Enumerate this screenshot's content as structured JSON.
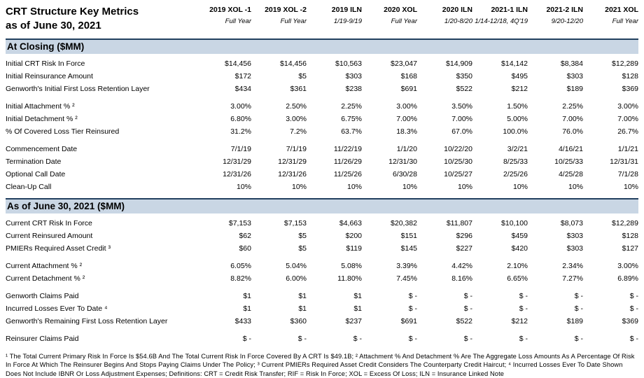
{
  "header": {
    "title_line1": "CRT Structure Key Metrics",
    "title_line2": "as of June 30, 2021",
    "columns": [
      {
        "name": "2019 XOL -1",
        "period": "Full Year"
      },
      {
        "name": "2019 XOL -2",
        "period": "Full Year"
      },
      {
        "name": "2019 ILN",
        "period": "1/19-9/19"
      },
      {
        "name": "2020 XOL",
        "period": "Full Year"
      },
      {
        "name": "2020 ILN",
        "period": "1/20-8/20"
      },
      {
        "name": "2021-1 ILN",
        "period": "1/14-12/18, 4Q'19"
      },
      {
        "name": "2021-2 ILN",
        "period": "9/20-12/20"
      },
      {
        "name": "2021 XOL",
        "period": "Full Year"
      }
    ]
  },
  "colors": {
    "section_bar_bg": "#c9d6e4",
    "section_bar_border": "#22405f"
  },
  "sections": [
    {
      "title": "At Closing ($MM)",
      "groups": [
        {
          "rows": [
            {
              "label": "Initial CRT Risk In Force",
              "values": [
                "$14,456",
                "$14,456",
                "$10,563",
                "$23,047",
                "$14,909",
                "$14,142",
                "$8,384",
                "$12,289"
              ]
            },
            {
              "label": "Initial Reinsurance Amount",
              "values": [
                "$172",
                "$5",
                "$303",
                "$168",
                "$350",
                "$495",
                "$303",
                "$128"
              ]
            },
            {
              "label": "Genworth's Initial First Loss Retention Layer",
              "values": [
                "$434",
                "$361",
                "$238",
                "$691",
                "$522",
                "$212",
                "$189",
                "$369"
              ]
            }
          ]
        },
        {
          "rows": [
            {
              "label": "Initial Attachment % ²",
              "values": [
                "3.00%",
                "2.50%",
                "2.25%",
                "3.00%",
                "3.50%",
                "1.50%",
                "2.25%",
                "3.00%"
              ]
            },
            {
              "label": "Initial Detachment % ²",
              "values": [
                "6.80%",
                "3.00%",
                "6.75%",
                "7.00%",
                "7.00%",
                "5.00%",
                "7.00%",
                "7.00%"
              ]
            },
            {
              "label": "% Of  Covered Loss  Tier Reinsured",
              "values": [
                "31.2%",
                "7.2%",
                "63.7%",
                "18.3%",
                "67.0%",
                "100.0%",
                "76.0%",
                "26.7%"
              ]
            }
          ]
        },
        {
          "rows": [
            {
              "label": "Commencement Date",
              "values": [
                "7/1/19",
                "7/1/19",
                "11/22/19",
                "1/1/20",
                "10/22/20",
                "3/2/21",
                "4/16/21",
                "1/1/21"
              ]
            },
            {
              "label": "Termination Date",
              "values": [
                "12/31/29",
                "12/31/29",
                "11/26/29",
                "12/31/30",
                "10/25/30",
                "8/25/33",
                "10/25/33",
                "12/31/31"
              ]
            },
            {
              "label": "Optional Call Date",
              "values": [
                "12/31/26",
                "12/31/26",
                "11/25/26",
                "6/30/28",
                "10/25/27",
                "2/25/26",
                "4/25/28",
                "7/1/28"
              ]
            },
            {
              "label": "Clean-Up Call",
              "values": [
                "10%",
                "10%",
                "10%",
                "10%",
                "10%",
                "10%",
                "10%",
                "10%"
              ]
            }
          ]
        }
      ]
    },
    {
      "title": "As of June 30, 2021 ($MM)",
      "groups": [
        {
          "rows": [
            {
              "label": "Current CRT Risk In Force",
              "values": [
                "$7,153",
                "$7,153",
                "$4,663",
                "$20,382",
                "$11,807",
                "$10,100",
                "$8,073",
                "$12,289"
              ]
            },
            {
              "label": "Current Reinsured Amount",
              "values": [
                "$62",
                "$5",
                "$200",
                "$151",
                "$296",
                "$459",
                "$303",
                "$128"
              ]
            },
            {
              "label": "PMIERs Required Asset Credit ³",
              "values": [
                "$60",
                "$5",
                "$119",
                "$145",
                "$227",
                "$420",
                "$303",
                "$127"
              ]
            }
          ]
        },
        {
          "rows": [
            {
              "label": "Current Attachment % ²",
              "values": [
                "6.05%",
                "5.04%",
                "5.08%",
                "3.39%",
                "4.42%",
                "2.10%",
                "2.34%",
                "3.00%"
              ]
            },
            {
              "label": "Current Detachment % ²",
              "values": [
                "8.82%",
                "6.00%",
                "11.80%",
                "7.45%",
                "8.16%",
                "6.65%",
                "7.27%",
                "6.89%"
              ]
            }
          ]
        },
        {
          "rows": [
            {
              "label": "Genworth Claims Paid",
              "values": [
                "$1",
                "$1",
                "$1",
                "$ -",
                "$ -",
                "$ -",
                "$ -",
                "$ -"
              ]
            },
            {
              "label": "Incurred Losses  Ever To Date ⁴",
              "values": [
                "$1",
                "$1",
                "$1",
                "$ -",
                "$ -",
                "$ -",
                "$ -",
                "$ -"
              ]
            },
            {
              "label": "Genworth's Remaining First Loss Retention Layer",
              "values": [
                "$433",
                "$360",
                "$237",
                "$691",
                "$522",
                "$212",
                "$189",
                "$369"
              ]
            }
          ]
        },
        {
          "rows": [
            {
              "label": "Reinsurer Claims  Paid",
              "values": [
                "$ -",
                "$ -",
                "$ -",
                "$ -",
                "$ -",
                "$ -",
                "$ -",
                "$ -"
              ]
            }
          ]
        }
      ]
    }
  ],
  "footnote": "¹ The Total Current Primary Risk In Force Is  $54.6B And The Total Current Risk In Force Covered By A CRT Is  $49.1B;  ² Attachment % And Detachment % Are The Aggregate Loss Amounts As A Percentage Of Risk In Force  At Which The Reinsurer Begins And Stops Paying Claims Under The Policy;  ³ Current PMIERs Required Asset Credit Considers The Counterparty Credit Haircut;  ⁴ Incurred Losses  Ever  To Date Shown Does Not Include IBNR Or Loss  Adjustment Expenses; Definitions: CRT = Credit Risk  Transfer;  RIF  =  Risk  In Force;  XOL =  Excess  Of Loss;   ILN =  Insurance Linked Note"
}
